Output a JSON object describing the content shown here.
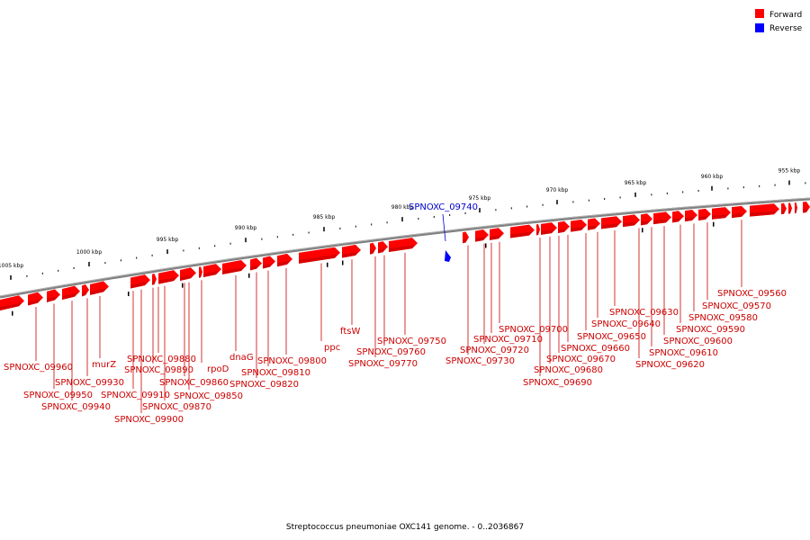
{
  "legend": {
    "items": [
      {
        "label": "Forward",
        "color": "#ff0000"
      },
      {
        "label": "Reverse",
        "color": "#0000ff"
      }
    ]
  },
  "caption": "Streptococcus pneumoniae OXC141 genome. - 0..2036867",
  "colors": {
    "forward": "#ff0000",
    "forward_dark": "#c00000",
    "reverse": "#0000ff",
    "backbone": "#808080",
    "label_forward": "#cc0000",
    "label_reverse": "#0000cc"
  },
  "ticks": [
    {
      "label": "1005 kbp",
      "kbp": 1005
    },
    {
      "label": "1000 kbp",
      "kbp": 1000
    },
    {
      "label": "995 kbp",
      "kbp": 995
    },
    {
      "label": "990 kbp",
      "kbp": 990
    },
    {
      "label": "985 kbp",
      "kbp": 985
    },
    {
      "label": "980 kbp",
      "kbp": 980
    },
    {
      "label": "975 kbp",
      "kbp": 975
    },
    {
      "label": "970 kbp",
      "kbp": 970
    },
    {
      "label": "965 kbp",
      "kbp": 965
    },
    {
      "label": "960 kbp",
      "kbp": 960
    },
    {
      "label": "955 kbp",
      "kbp": 955
    }
  ],
  "reverse_genes": [
    {
      "label": "SPNOXC_09740"
    }
  ],
  "forward_gene_labels": [
    "SPNOXC_09960",
    "SPNOXC_09950",
    "SPNOXC_09940",
    "SPNOXC_09930",
    "murZ",
    "SPNOXC_09910",
    "SPNOXC_09900",
    "SPNOXC_09890",
    "SPNOXC_09880",
    "SPNOXC_09870",
    "SPNOXC_09860",
    "SPNOXC_09850",
    "rpoD",
    "dnaG",
    "SPNOXC_09820",
    "SPNOXC_09810",
    "SPNOXC_09800",
    "ppc",
    "ftsW",
    "SPNOXC_09770",
    "SPNOXC_09760",
    "SPNOXC_09750",
    "SPNOXC_09730",
    "SPNOXC_09720",
    "SPNOXC_09710",
    "SPNOXC_09700",
    "SPNOXC_09690",
    "SPNOXC_09680",
    "SPNOXC_09670",
    "SPNOXC_09660",
    "SPNOXC_09650",
    "SPNOXC_09640",
    "SPNOXC_09630",
    "SPNOXC_09620",
    "SPNOXC_09610",
    "SPNOXC_09600",
    "SPNOXC_09590",
    "SPNOXC_09580",
    "SPNOXC_09570",
    "SPNOXC_09560"
  ]
}
